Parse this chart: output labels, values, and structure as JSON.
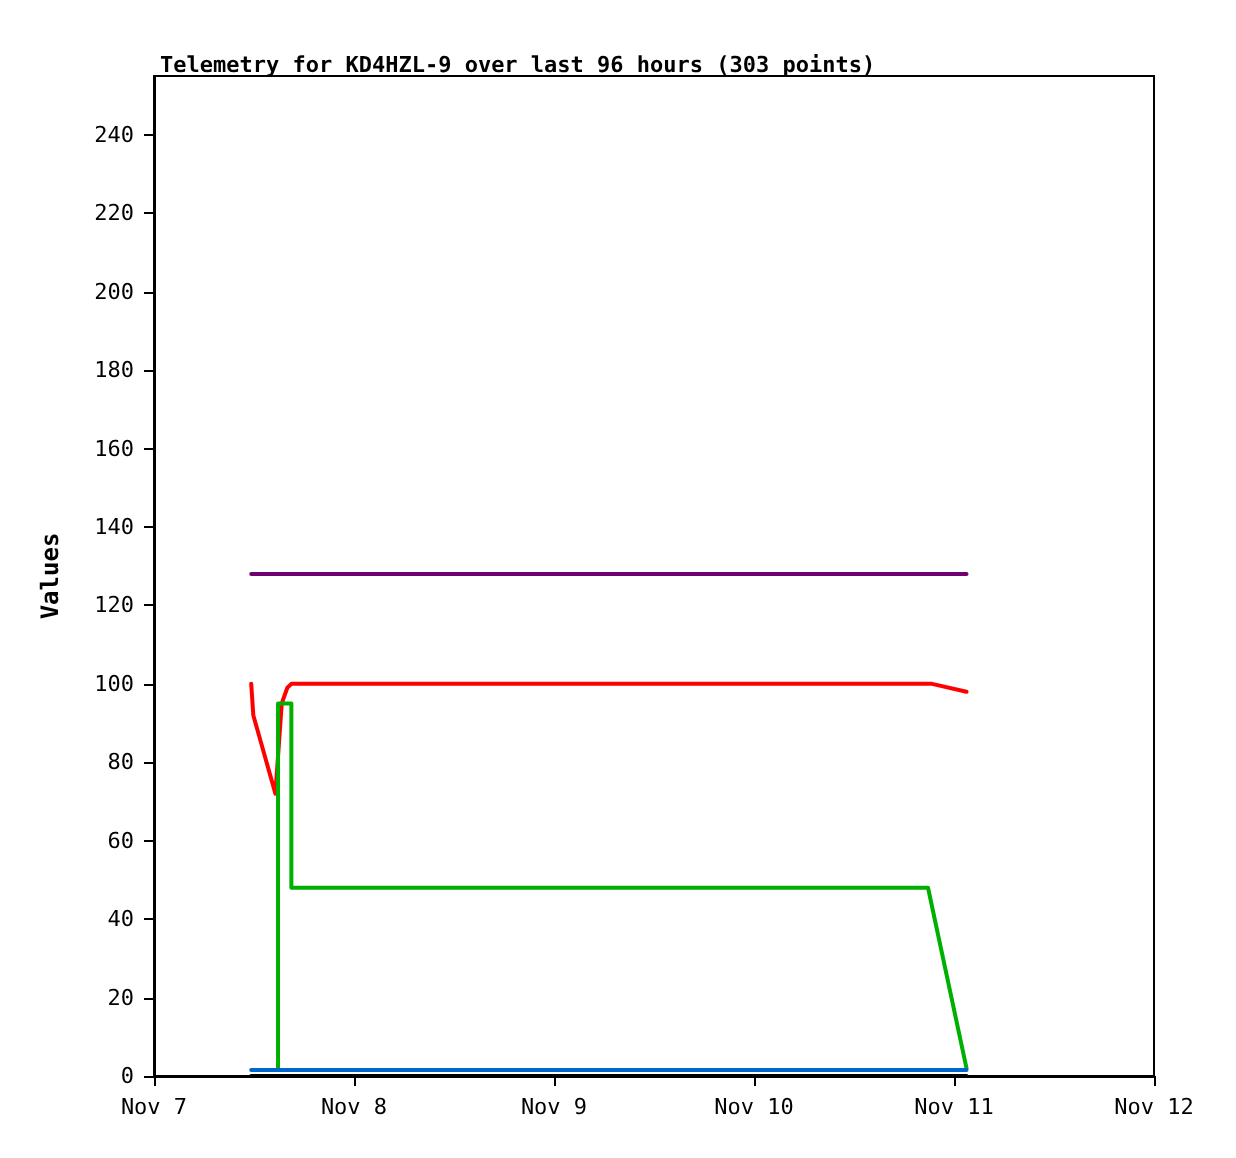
{
  "chart_data": {
    "type": "line",
    "title": "Telemetry for KD4HZL-9 over last 96 hours (303 points)",
    "ylabel": "Values",
    "xlim": [
      "--11-07",
      "--11-12"
    ],
    "xticks": [
      {
        "value": "--11-07",
        "label": "Nov 7"
      },
      {
        "value": "--11-08",
        "label": "Nov 8"
      },
      {
        "value": "--11-09",
        "label": "Nov 9"
      },
      {
        "value": "--11-10",
        "label": "Nov 10"
      },
      {
        "value": "--11-11",
        "label": "Nov 11"
      },
      {
        "value": "--11-12",
        "label": "Nov 12"
      }
    ],
    "ylim": [
      0,
      255
    ],
    "yticks": [
      0,
      20,
      40,
      60,
      80,
      100,
      120,
      140,
      160,
      180,
      200,
      220,
      240
    ],
    "grid": false,
    "marker": "none",
    "line_style": "solid",
    "series": [
      {
        "color": "#6f006f",
        "x": [
          "--11-07T11:40",
          "--11-11T01:30"
        ],
        "values": [
          128,
          128
        ]
      },
      {
        "color": "#ff0000",
        "x": [
          "--11-07T11:40",
          "--11-07T11:55",
          "--11-07T14:34",
          "--11-07T15:20",
          "--11-07T16:00",
          "--11-07T16:29",
          "--11-10T21:22",
          "--11-11T01:30"
        ],
        "values": [
          100,
          92,
          72,
          95,
          99,
          100,
          100,
          98
        ]
      },
      {
        "color": "#00b000",
        "x": [
          "--11-07T14:53",
          "--11-07T14:53",
          "--11-07T16:29",
          "--11-07T16:29",
          "--11-10T20:53",
          "--11-11T01:30"
        ],
        "values": [
          2,
          95,
          95,
          48,
          48,
          2
        ]
      },
      {
        "color": "#0066cc",
        "x": [
          "--11-07T11:40",
          "--11-11T01:30"
        ],
        "values": [
          1.5,
          1.5
        ]
      },
      {
        "color": "#000000",
        "x": [
          "--11-07T11:40",
          "--11-11T01:30"
        ],
        "values": [
          0,
          0
        ]
      }
    ]
  }
}
